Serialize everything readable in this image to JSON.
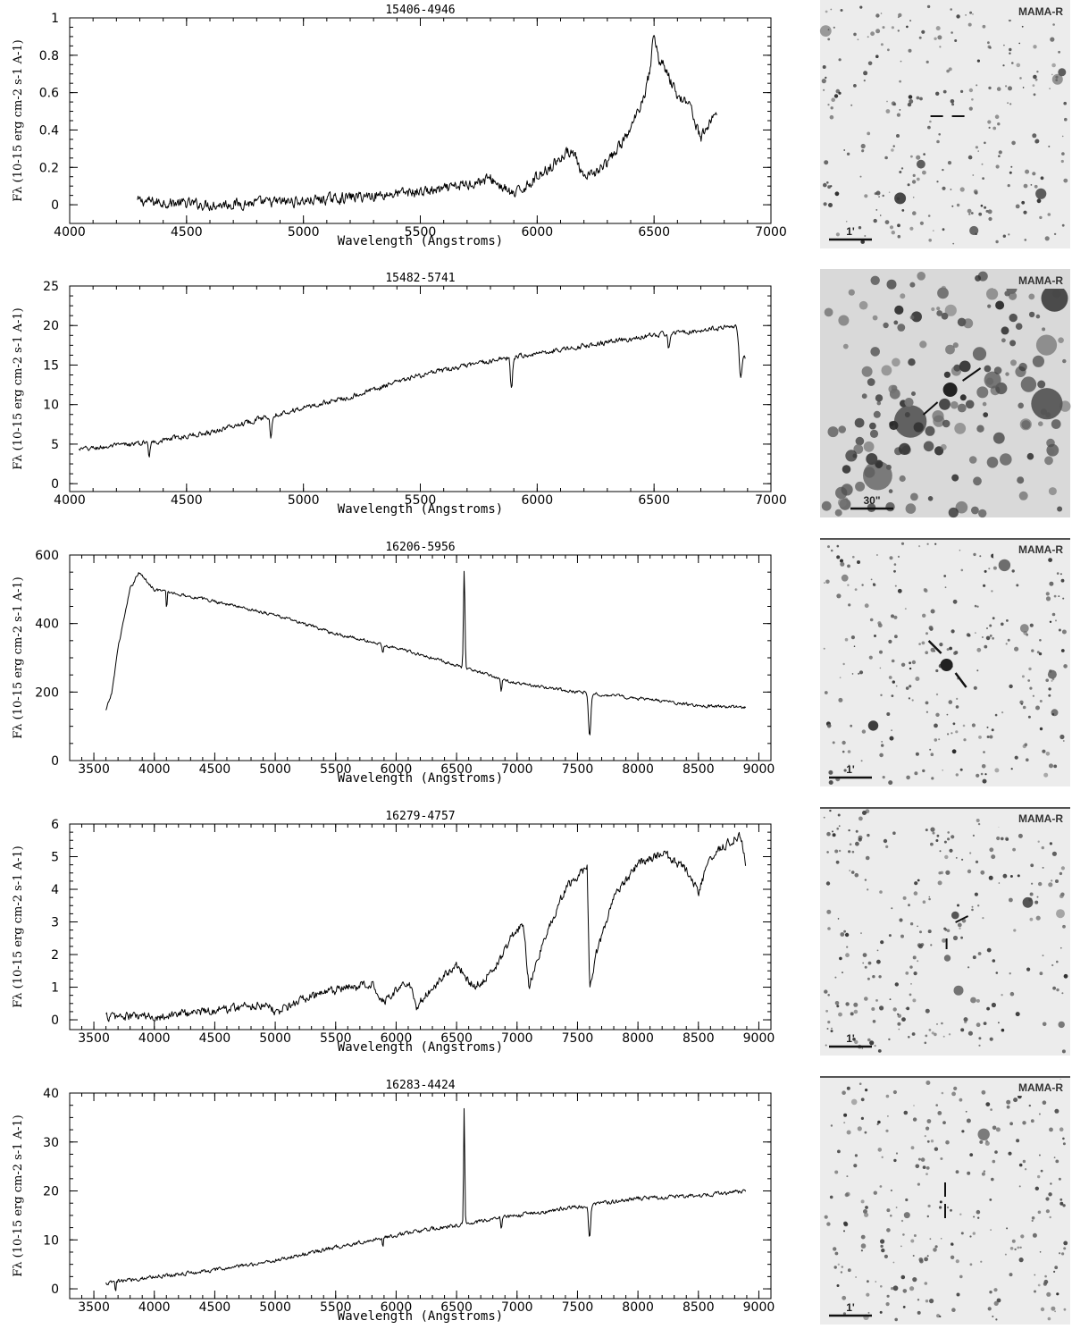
{
  "panels": [
    {
      "chart_data": {
        "type": "line",
        "title": "15406-4946",
        "xlabel": "Wavelength (Angstroms)",
        "ylabel": "Fλ (10-15 erg cm-2 s-1 A-1)",
        "xlim": [
          4000,
          7000
        ],
        "ylim": [
          -0.1,
          1.0
        ],
        "xticks": [
          4000,
          4500,
          5000,
          5500,
          6000,
          6500,
          7000
        ],
        "yticks": [
          0,
          0.2,
          0.4,
          0.6,
          0.8,
          1
        ],
        "x_range": [
          4290,
          6770
        ],
        "anchors": [
          [
            4290,
            0.02
          ],
          [
            4600,
            0.0
          ],
          [
            5000,
            0.02
          ],
          [
            5400,
            0.06
          ],
          [
            5600,
            0.08
          ],
          [
            5800,
            0.14
          ],
          [
            5900,
            0.05
          ],
          [
            6100,
            0.25
          ],
          [
            6150,
            0.3
          ],
          [
            6200,
            0.13
          ],
          [
            6300,
            0.22
          ],
          [
            6400,
            0.4
          ],
          [
            6460,
            0.6
          ],
          [
            6500,
            0.8
          ],
          [
            6540,
            0.75
          ],
          [
            6600,
            0.58
          ],
          [
            6650,
            0.55
          ],
          [
            6700,
            0.35
          ],
          [
            6740,
            0.45
          ],
          [
            6770,
            0.5
          ]
        ],
        "features": [
          [
            6500,
            0.12,
            12
          ]
        ],
        "noise": 0.03,
        "grid": false,
        "legend": "none"
      },
      "image": {
        "survey": "MAMA-R",
        "scale": "1'"
      }
    },
    {
      "chart_data": {
        "type": "line",
        "title": "15482-5741",
        "xlabel": "Wavelength (Angstroms)",
        "ylabel": "Fλ (10-15 erg cm-2 s-1 A-1)",
        "xlim": [
          4000,
          7000
        ],
        "ylim": [
          -1,
          25
        ],
        "xticks": [
          4000,
          4500,
          5000,
          5500,
          6000,
          6500,
          7000
        ],
        "yticks": [
          0,
          5,
          10,
          15,
          20,
          25
        ],
        "x_range": [
          4040,
          6890
        ],
        "anchors": [
          [
            4040,
            4.3
          ],
          [
            4340,
            5.2
          ],
          [
            4600,
            6.5
          ],
          [
            4861,
            8.6
          ],
          [
            5200,
            11.0
          ],
          [
            5500,
            13.7
          ],
          [
            5800,
            15.5
          ],
          [
            6000,
            16.5
          ],
          [
            6300,
            17.9
          ],
          [
            6560,
            19.0
          ],
          [
            6850,
            19.9
          ],
          [
            6890,
            16.0
          ]
        ],
        "features": [
          [
            4340,
            -1.8,
            4
          ],
          [
            4861,
            -2.8,
            5
          ],
          [
            5890,
            -4.0,
            6
          ],
          [
            6563,
            -2.0,
            6
          ],
          [
            6870,
            -4.5,
            8
          ]
        ],
        "noise": 0.35,
        "grid": false,
        "legend": "none"
      },
      "image": {
        "survey": "MAMA-R",
        "scale": "30\""
      }
    },
    {
      "chart_data": {
        "type": "line",
        "title": "16206-5956",
        "xlabel": "Wavelength (Angstroms)",
        "ylabel": "Fλ (10-15 erg cm-2 s-1 A-1)",
        "xlim": [
          3300,
          9100
        ],
        "ylim": [
          0,
          600
        ],
        "xticks": [
          3500,
          4000,
          4500,
          5000,
          5500,
          6000,
          6500,
          7000,
          7500,
          8000,
          8500,
          9000
        ],
        "yticks": [
          0,
          200,
          400,
          600
        ],
        "x_range": [
          3600,
          8890
        ],
        "anchors": [
          [
            3600,
            145
          ],
          [
            3650,
            200
          ],
          [
            3700,
            330
          ],
          [
            3800,
            500
          ],
          [
            3870,
            550
          ],
          [
            4000,
            500
          ],
          [
            4500,
            465
          ],
          [
            5000,
            425
          ],
          [
            5500,
            370
          ],
          [
            6000,
            330
          ],
          [
            6500,
            278
          ],
          [
            7000,
            225
          ],
          [
            7500,
            200
          ],
          [
            8000,
            182
          ],
          [
            8500,
            160
          ],
          [
            8890,
            155
          ]
        ],
        "features": [
          [
            6563,
            285,
            9
          ],
          [
            5890,
            -30,
            8
          ],
          [
            6870,
            -35,
            8
          ],
          [
            7600,
            -130,
            14
          ],
          [
            4102,
            -60,
            5
          ]
        ],
        "noise": 5,
        "grid": false,
        "legend": "none"
      },
      "image": {
        "survey": "MAMA-R",
        "scale": "1'"
      }
    },
    {
      "chart_data": {
        "type": "line",
        "title": "16279-4757",
        "xlabel": "Wavelength (Angstroms)",
        "ylabel": "Fλ (10-15 erg cm-2 s-1 A-1)",
        "xlim": [
          3300,
          9100
        ],
        "ylim": [
          -0.3,
          6
        ],
        "xticks": [
          3500,
          4000,
          4500,
          5000,
          5500,
          6000,
          6500,
          7000,
          7500,
          8000,
          8500,
          9000
        ],
        "yticks": [
          0,
          1,
          2,
          3,
          4,
          5,
          6
        ],
        "x_range": [
          3600,
          8890
        ],
        "anchors": [
          [
            3600,
            0.1
          ],
          [
            4000,
            0.1
          ],
          [
            4500,
            0.3
          ],
          [
            4950,
            0.5
          ],
          [
            5000,
            0.2
          ],
          [
            5200,
            0.6
          ],
          [
            5500,
            0.9
          ],
          [
            5800,
            1.1
          ],
          [
            5900,
            0.6
          ],
          [
            6100,
            1.2
          ],
          [
            6170,
            0.4
          ],
          [
            6350,
            1.2
          ],
          [
            6500,
            1.7
          ],
          [
            6650,
            1.0
          ],
          [
            6800,
            1.5
          ],
          [
            6950,
            2.5
          ],
          [
            7050,
            3.0
          ],
          [
            7100,
            1.0
          ],
          [
            7200,
            2.2
          ],
          [
            7400,
            4.0
          ],
          [
            7580,
            4.7
          ],
          [
            7600,
            0.8
          ],
          [
            7650,
            2.0
          ],
          [
            7800,
            3.7
          ],
          [
            8000,
            4.8
          ],
          [
            8200,
            5.1
          ],
          [
            8400,
            4.6
          ],
          [
            8500,
            3.9
          ],
          [
            8600,
            5.0
          ],
          [
            8850,
            5.7
          ],
          [
            8890,
            4.8
          ]
        ],
        "features": [],
        "noise": 0.15,
        "grid": false,
        "legend": "none"
      },
      "image": {
        "survey": "MAMA-R",
        "scale": "1'"
      }
    },
    {
      "chart_data": {
        "type": "line",
        "title": "16283-4424",
        "xlabel": "Wavelength (Angstroms)",
        "ylabel": "Fλ (10-15 erg cm-2 s-1 A-1)",
        "xlim": [
          3300,
          9100
        ],
        "ylim": [
          -2,
          40
        ],
        "xticks": [
          3500,
          4000,
          4500,
          5000,
          5500,
          6000,
          6500,
          7000,
          7500,
          8000,
          8500,
          9000
        ],
        "yticks": [
          0,
          10,
          20,
          30,
          40
        ],
        "x_range": [
          3600,
          8890
        ],
        "anchors": [
          [
            3600,
            1.0
          ],
          [
            3700,
            1.5
          ],
          [
            4000,
            2.5
          ],
          [
            4500,
            3.8
          ],
          [
            5000,
            5.8
          ],
          [
            5500,
            8.5
          ],
          [
            6000,
            11.0
          ],
          [
            6500,
            13.0
          ],
          [
            7000,
            15.0
          ],
          [
            7500,
            16.8
          ],
          [
            8000,
            18.5
          ],
          [
            8500,
            19.0
          ],
          [
            8890,
            20.0
          ]
        ],
        "features": [
          [
            6563,
            23.5,
            7
          ],
          [
            7600,
            -7,
            12
          ],
          [
            6870,
            -2.5,
            6
          ],
          [
            5890,
            -2,
            6
          ],
          [
            3680,
            -2.5,
            5
          ]
        ],
        "noise": 0.45,
        "grid": false,
        "legend": "none"
      },
      "image": {
        "survey": "MAMA-R",
        "scale": "1'"
      }
    }
  ]
}
